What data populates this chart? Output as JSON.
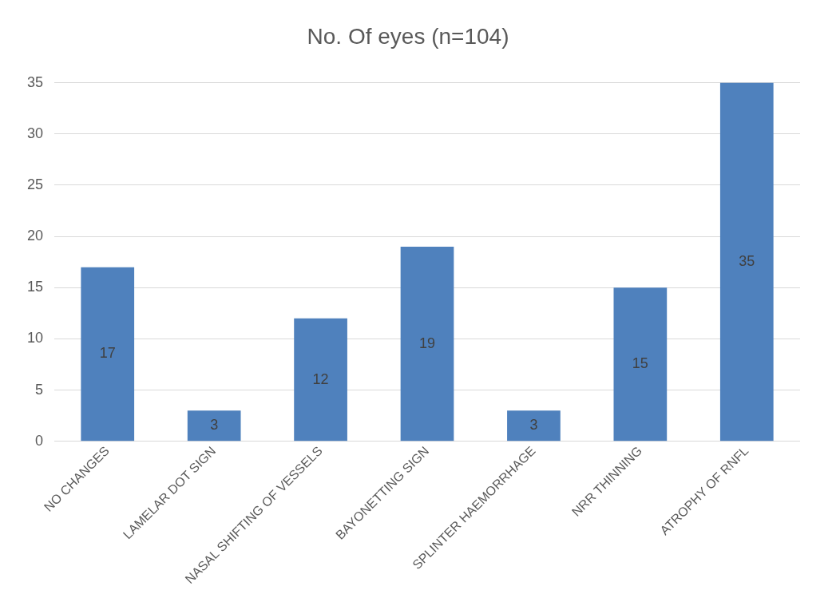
{
  "chart_data": {
    "type": "bar",
    "title": "No. Of eyes (n=104)",
    "categories": [
      "NO CHANGES",
      "LAMELAR DOT SIGN",
      "NASAL SHIFTING OF VESSELS",
      "BAYONETTING SIGN",
      "SPLINTER HAEMORRHAGE",
      "NRR THINNING",
      "ATROPHY OF RNFL"
    ],
    "values": [
      17,
      3,
      12,
      19,
      3,
      15,
      35
    ],
    "color": "#4f81bd",
    "ylim": [
      0,
      35
    ],
    "yticks": [
      0,
      5,
      10,
      15,
      20,
      25,
      30,
      35
    ],
    "grid": "y",
    "data_labels": true
  }
}
